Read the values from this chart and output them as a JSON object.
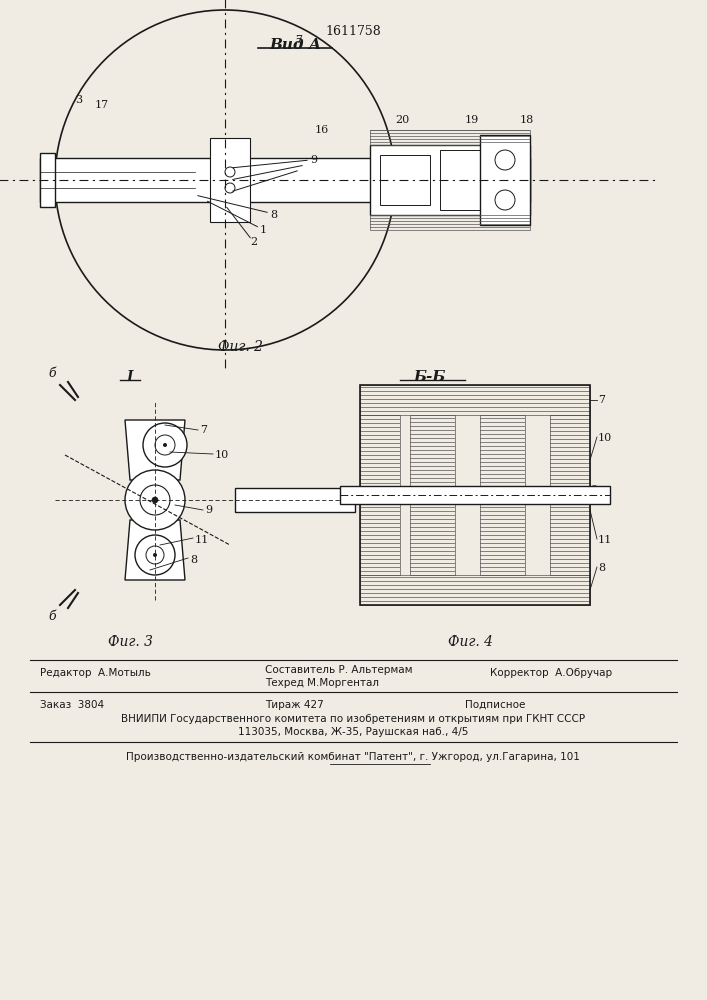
{
  "patent_number": "1611758",
  "fig2_title": "Вид А",
  "fig2_label": "Фиг. 2",
  "fig3_label": "Фиг. 3",
  "fig4_label": "Фиг. 4",
  "fig4_title": "Б-Б",
  "fig3_title": "I",
  "footer_line1_left": "Редактор  А.Мотыль",
  "footer_line1_center_top": "Составитель Р. Альтермам",
  "footer_line1_center_bot": "Техред М.Моргентал",
  "footer_line1_right": "Корректор  А.Обручар",
  "footer_line2_left": "Заказ  3804",
  "footer_line2_center": "Тираж 427",
  "footer_line2_right": "Подписное",
  "footer_line3": "ВНИИПИ Государственного комитета по изобретениям и открытиям при ГКНТ СССР",
  "footer_line4": "113035, Москва, Ж-35, Раушская наб., 4/5",
  "footer_line5": "Производственно-издательский комбинат \"Патент\", г. Ужгород, ул.Гагарина, 101",
  "bg_color": "#f0ece4",
  "line_color": "#1a1a1a",
  "hatch_color": "#333333"
}
